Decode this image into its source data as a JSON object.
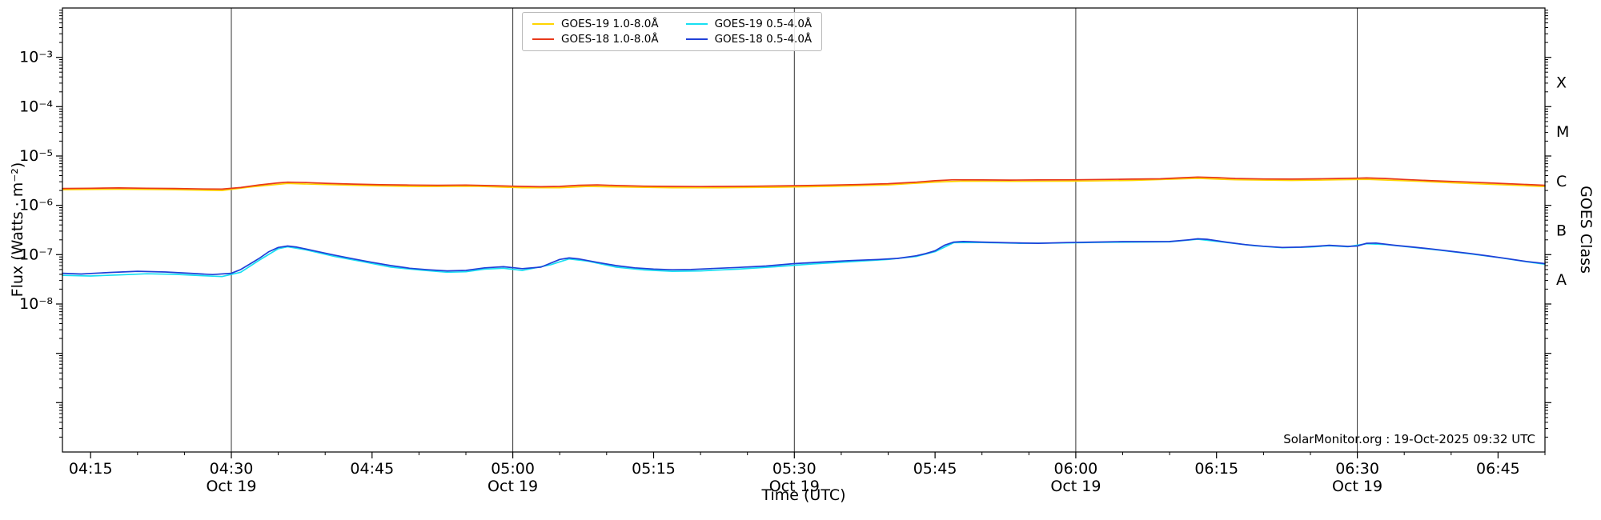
{
  "axes": {
    "x_label": "Time (UTC)",
    "y_label": "Flux (Watts · m⁻²)",
    "right_label": "GOES Class"
  },
  "footer": {
    "credit": "SolarMonitor.org : 19-Oct-2025 09:32 UTC"
  },
  "chart_data": {
    "type": "line",
    "title": "",
    "xlabel": "Time (UTC)",
    "ylabel": "Flux (Watts · m⁻²)",
    "right_axis_label": "GOES Class",
    "x_unit": "minutes_since_midnight_UTC_19_Oct_2025",
    "x_range_minutes": [
      252,
      410
    ],
    "y_scale": "log10",
    "y_log_min": -11.0,
    "y_log_max": -2.0,
    "grid": "vertical-lines-at-half-hours",
    "legend_position": "top-center",
    "x_gridlines": [
      270,
      300,
      330,
      360,
      390
    ],
    "x_major_ticks": [
      {
        "t": 255,
        "time": "04:15",
        "date": ""
      },
      {
        "t": 270,
        "time": "04:30",
        "date": "Oct 19"
      },
      {
        "t": 285,
        "time": "04:45",
        "date": ""
      },
      {
        "t": 300,
        "time": "05:00",
        "date": "Oct 19"
      },
      {
        "t": 315,
        "time": "05:15",
        "date": ""
      },
      {
        "t": 330,
        "time": "05:30",
        "date": "Oct 19"
      },
      {
        "t": 345,
        "time": "05:45",
        "date": ""
      },
      {
        "t": 360,
        "time": "06:00",
        "date": "Oct 19"
      },
      {
        "t": 375,
        "time": "06:15",
        "date": ""
      },
      {
        "t": 390,
        "time": "06:30",
        "date": "Oct 19"
      },
      {
        "t": 405,
        "time": "06:45",
        "date": ""
      }
    ],
    "y_major_ticks": [
      {
        "exp": -3,
        "label": "10⁻³"
      },
      {
        "exp": -4,
        "label": "10⁻⁴"
      },
      {
        "exp": -5,
        "label": "10⁻⁵"
      },
      {
        "exp": -6,
        "label": "10⁻⁶"
      },
      {
        "exp": -7,
        "label": "10⁻⁷"
      },
      {
        "exp": -8,
        "label": "10⁻⁸"
      },
      {
        "exp": -9,
        "label": ""
      },
      {
        "exp": -10,
        "label": ""
      }
    ],
    "goes_classes": [
      {
        "label": "X",
        "log_center": -3.5
      },
      {
        "label": "M",
        "log_center": -4.5
      },
      {
        "label": "C",
        "log_center": -5.5
      },
      {
        "label": "B",
        "log_center": -6.5
      },
      {
        "label": "A",
        "log_center": -7.5
      }
    ],
    "series": [
      {
        "name": "GOES-19 1.0-8.0Å",
        "color": "#ffd400",
        "points": [
          [
            252,
            2.08e-06
          ],
          [
            258,
            2.12e-06
          ],
          [
            264,
            2.07e-06
          ],
          [
            269,
            2e-06
          ],
          [
            272,
            2.35e-06
          ],
          [
            276,
            2.78e-06
          ],
          [
            280,
            2.64e-06
          ],
          [
            285,
            2.5e-06
          ],
          [
            290,
            2.4e-06
          ],
          [
            296,
            2.44e-06
          ],
          [
            301,
            2.28e-06
          ],
          [
            305,
            2.28e-06
          ],
          [
            308,
            2.42e-06
          ],
          [
            312,
            2.35e-06
          ],
          [
            317,
            2.28e-06
          ],
          [
            322,
            2.27e-06
          ],
          [
            328,
            2.33e-06
          ],
          [
            334,
            2.43e-06
          ],
          [
            340,
            2.59e-06
          ],
          [
            345,
            2.96e-06
          ],
          [
            348,
            3.1e-06
          ],
          [
            353,
            3.06e-06
          ],
          [
            360,
            3.1e-06
          ],
          [
            366,
            3.2e-06
          ],
          [
            373,
            3.53e-06
          ],
          [
            377,
            3.3e-06
          ],
          [
            383,
            3.2e-06
          ],
          [
            388,
            3.3e-06
          ],
          [
            391,
            3.38e-06
          ],
          [
            395,
            3.15e-06
          ],
          [
            401,
            2.82e-06
          ],
          [
            407,
            2.54e-06
          ],
          [
            410,
            2.4e-06
          ]
        ]
      },
      {
        "name": "GOES-18 1.0-8.0Å",
        "color": "#e8391a",
        "points": [
          [
            252,
            2.2e-06
          ],
          [
            255,
            2.22e-06
          ],
          [
            258,
            2.25e-06
          ],
          [
            261,
            2.22e-06
          ],
          [
            264,
            2.2e-06
          ],
          [
            267,
            2.15e-06
          ],
          [
            269,
            2.13e-06
          ],
          [
            271,
            2.3e-06
          ],
          [
            273,
            2.6e-06
          ],
          [
            275,
            2.85e-06
          ],
          [
            276,
            2.95e-06
          ],
          [
            278,
            2.9e-06
          ],
          [
            280,
            2.8e-06
          ],
          [
            283,
            2.7e-06
          ],
          [
            286,
            2.62e-06
          ],
          [
            289,
            2.58e-06
          ],
          [
            292,
            2.55e-06
          ],
          [
            295,
            2.58e-06
          ],
          [
            298,
            2.5e-06
          ],
          [
            301,
            2.42e-06
          ],
          [
            303,
            2.38e-06
          ],
          [
            305,
            2.42e-06
          ],
          [
            307,
            2.55e-06
          ],
          [
            309,
            2.6e-06
          ],
          [
            311,
            2.52e-06
          ],
          [
            314,
            2.45e-06
          ],
          [
            317,
            2.42e-06
          ],
          [
            320,
            2.4e-06
          ],
          [
            323,
            2.42e-06
          ],
          [
            326,
            2.45e-06
          ],
          [
            330,
            2.5e-06
          ],
          [
            334,
            2.58e-06
          ],
          [
            337,
            2.65e-06
          ],
          [
            340,
            2.75e-06
          ],
          [
            343,
            2.95e-06
          ],
          [
            345,
            3.15e-06
          ],
          [
            347,
            3.3e-06
          ],
          [
            350,
            3.28e-06
          ],
          [
            353,
            3.25e-06
          ],
          [
            356,
            3.28e-06
          ],
          [
            360,
            3.3e-06
          ],
          [
            363,
            3.35e-06
          ],
          [
            366,
            3.4e-06
          ],
          [
            369,
            3.45e-06
          ],
          [
            371,
            3.6e-06
          ],
          [
            373,
            3.75e-06
          ],
          [
            375,
            3.65e-06
          ],
          [
            377,
            3.5e-06
          ],
          [
            380,
            3.42e-06
          ],
          [
            383,
            3.4e-06
          ],
          [
            386,
            3.45e-06
          ],
          [
            388,
            3.5e-06
          ],
          [
            390,
            3.55e-06
          ],
          [
            391,
            3.6e-06
          ],
          [
            393,
            3.5e-06
          ],
          [
            395,
            3.35e-06
          ],
          [
            398,
            3.15e-06
          ],
          [
            401,
            3e-06
          ],
          [
            404,
            2.85e-06
          ],
          [
            407,
            2.7e-06
          ],
          [
            410,
            2.55e-06
          ]
        ]
      },
      {
        "name": "GOES-19 0.5-4.0Å",
        "color": "#18dff2",
        "points": [
          [
            252,
            3.8e-08
          ],
          [
            255,
            3.7e-08
          ],
          [
            258,
            3.9e-08
          ],
          [
            261,
            4.1e-08
          ],
          [
            264,
            4e-08
          ],
          [
            267,
            3.75e-08
          ],
          [
            269,
            3.6e-08
          ],
          [
            271,
            4.4e-08
          ],
          [
            273,
            7.8e-08
          ],
          [
            275,
            1.32e-07
          ],
          [
            276,
            1.45e-07
          ],
          [
            278,
            1.25e-07
          ],
          [
            281,
            9.2e-08
          ],
          [
            284,
            7.2e-08
          ],
          [
            287,
            5.6e-08
          ],
          [
            290,
            4.9e-08
          ],
          [
            293,
            4.4e-08
          ],
          [
            295,
            4.5e-08
          ],
          [
            297,
            5.1e-08
          ],
          [
            299,
            5.3e-08
          ],
          [
            301,
            4.8e-08
          ],
          [
            304,
            6.2e-08
          ],
          [
            306,
            8.2e-08
          ],
          [
            308,
            7.4e-08
          ],
          [
            311,
            5.6e-08
          ],
          [
            314,
            4.9e-08
          ],
          [
            317,
            4.6e-08
          ],
          [
            320,
            4.7e-08
          ],
          [
            324,
            5.1e-08
          ],
          [
            328,
            5.7e-08
          ],
          [
            332,
            6.5e-08
          ],
          [
            336,
            7.2e-08
          ],
          [
            340,
            8e-08
          ],
          [
            343,
            9.2e-08
          ],
          [
            345,
            1.15e-07
          ],
          [
            347,
            1.75e-07
          ],
          [
            350,
            1.76e-07
          ],
          [
            354,
            1.7e-07
          ],
          [
            358,
            1.72e-07
          ],
          [
            362,
            1.77e-07
          ],
          [
            366,
            1.8e-07
          ],
          [
            370,
            1.82e-07
          ],
          [
            373,
            2.06e-07
          ],
          [
            376,
            1.77e-07
          ],
          [
            379,
            1.52e-07
          ],
          [
            382,
            1.38e-07
          ],
          [
            385,
            1.43e-07
          ],
          [
            387,
            1.52e-07
          ],
          [
            389,
            1.45e-07
          ],
          [
            391,
            1.67e-07
          ],
          [
            393,
            1.6e-07
          ],
          [
            396,
            1.4e-07
          ],
          [
            399,
            1.22e-07
          ],
          [
            402,
            1.04e-07
          ],
          [
            405,
            8.8e-08
          ],
          [
            408,
            7.2e-08
          ],
          [
            410,
            6.4e-08
          ]
        ]
      },
      {
        "name": "GOES-18 0.5-4.0Å",
        "color": "#2040d8",
        "points": [
          [
            252,
            4.2e-08
          ],
          [
            254,
            4.05e-08
          ],
          [
            257,
            4.35e-08
          ],
          [
            260,
            4.6e-08
          ],
          [
            263,
            4.45e-08
          ],
          [
            266,
            4.15e-08
          ],
          [
            268,
            3.95e-08
          ],
          [
            270,
            4.2e-08
          ],
          [
            271,
            5e-08
          ],
          [
            272,
            6.5e-08
          ],
          [
            273,
            8.5e-08
          ],
          [
            274,
            1.15e-07
          ],
          [
            275,
            1.4e-07
          ],
          [
            276,
            1.5e-07
          ],
          [
            277,
            1.42e-07
          ],
          [
            279,
            1.18e-07
          ],
          [
            281,
            9.8e-08
          ],
          [
            283,
            8.2e-08
          ],
          [
            285,
            7e-08
          ],
          [
            287,
            6e-08
          ],
          [
            289,
            5.3e-08
          ],
          [
            291,
            4.95e-08
          ],
          [
            293,
            4.7e-08
          ],
          [
            295,
            4.8e-08
          ],
          [
            297,
            5.4e-08
          ],
          [
            299,
            5.7e-08
          ],
          [
            301,
            5.2e-08
          ],
          [
            303,
            5.6e-08
          ],
          [
            305,
            8e-08
          ],
          [
            306,
            8.6e-08
          ],
          [
            307,
            8.2e-08
          ],
          [
            309,
            7e-08
          ],
          [
            311,
            6e-08
          ],
          [
            313,
            5.4e-08
          ],
          [
            315,
            5.1e-08
          ],
          [
            317,
            4.95e-08
          ],
          [
            319,
            5e-08
          ],
          [
            321,
            5.2e-08
          ],
          [
            324,
            5.5e-08
          ],
          [
            327,
            5.9e-08
          ],
          [
            330,
            6.6e-08
          ],
          [
            333,
            7.1e-08
          ],
          [
            336,
            7.6e-08
          ],
          [
            339,
            8e-08
          ],
          [
            341,
            8.4e-08
          ],
          [
            343,
            9.5e-08
          ],
          [
            344,
            1.05e-07
          ],
          [
            345,
            1.2e-07
          ],
          [
            346,
            1.55e-07
          ],
          [
            347,
            1.8e-07
          ],
          [
            348,
            1.85e-07
          ],
          [
            350,
            1.8e-07
          ],
          [
            353,
            1.74e-07
          ],
          [
            356,
            1.7e-07
          ],
          [
            359,
            1.76e-07
          ],
          [
            362,
            1.8e-07
          ],
          [
            365,
            1.84e-07
          ],
          [
            368,
            1.84e-07
          ],
          [
            370,
            1.85e-07
          ],
          [
            372,
            2e-07
          ],
          [
            373,
            2.1e-07
          ],
          [
            374,
            2.05e-07
          ],
          [
            376,
            1.8e-07
          ],
          [
            378,
            1.6e-07
          ],
          [
            380,
            1.48e-07
          ],
          [
            382,
            1.4e-07
          ],
          [
            384,
            1.42e-07
          ],
          [
            386,
            1.5e-07
          ],
          [
            387,
            1.55e-07
          ],
          [
            389,
            1.47e-07
          ],
          [
            390,
            1.5e-07
          ],
          [
            391,
            1.7e-07
          ],
          [
            392,
            1.72e-07
          ],
          [
            394,
            1.55e-07
          ],
          [
            396,
            1.42e-07
          ],
          [
            398,
            1.3e-07
          ],
          [
            400,
            1.17e-07
          ],
          [
            402,
            1.06e-07
          ],
          [
            404,
            9.4e-08
          ],
          [
            406,
            8.3e-08
          ],
          [
            408,
            7.3e-08
          ],
          [
            410,
            6.6e-08
          ]
        ]
      }
    ],
    "annotation": "SolarMonitor.org : 19-Oct-2025 09:32 UTC"
  }
}
